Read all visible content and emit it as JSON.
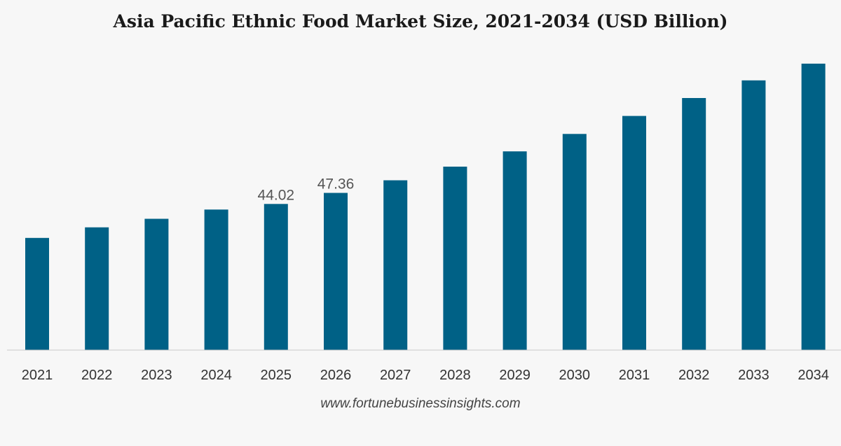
{
  "chart_data": {
    "type": "bar",
    "title": "Asia Pacific Ethnic Food Market Size, 2021-2034 (USD Billion)",
    "xlabel": "",
    "ylabel": "",
    "categories": [
      "2021",
      "2022",
      "2023",
      "2024",
      "2025",
      "2026",
      "2027",
      "2028",
      "2029",
      "2030",
      "2031",
      "2032",
      "2033",
      "2034"
    ],
    "values": [
      33.8,
      36.98,
      39.56,
      42.34,
      44.02,
      47.36,
      51.16,
      55.28,
      59.88,
      65.12,
      70.54,
      75.94,
      81.26,
      86.3
    ],
    "data_labels": [
      {
        "category": "2025",
        "text": "44.02"
      },
      {
        "category": "2026",
        "text": "47.36"
      }
    ],
    "ylim": [
      0,
      90
    ],
    "grid": false,
    "legend": "none",
    "bar_color": "#006186"
  },
  "footer": {
    "source": "www.fortunebusinessinsights.com"
  }
}
